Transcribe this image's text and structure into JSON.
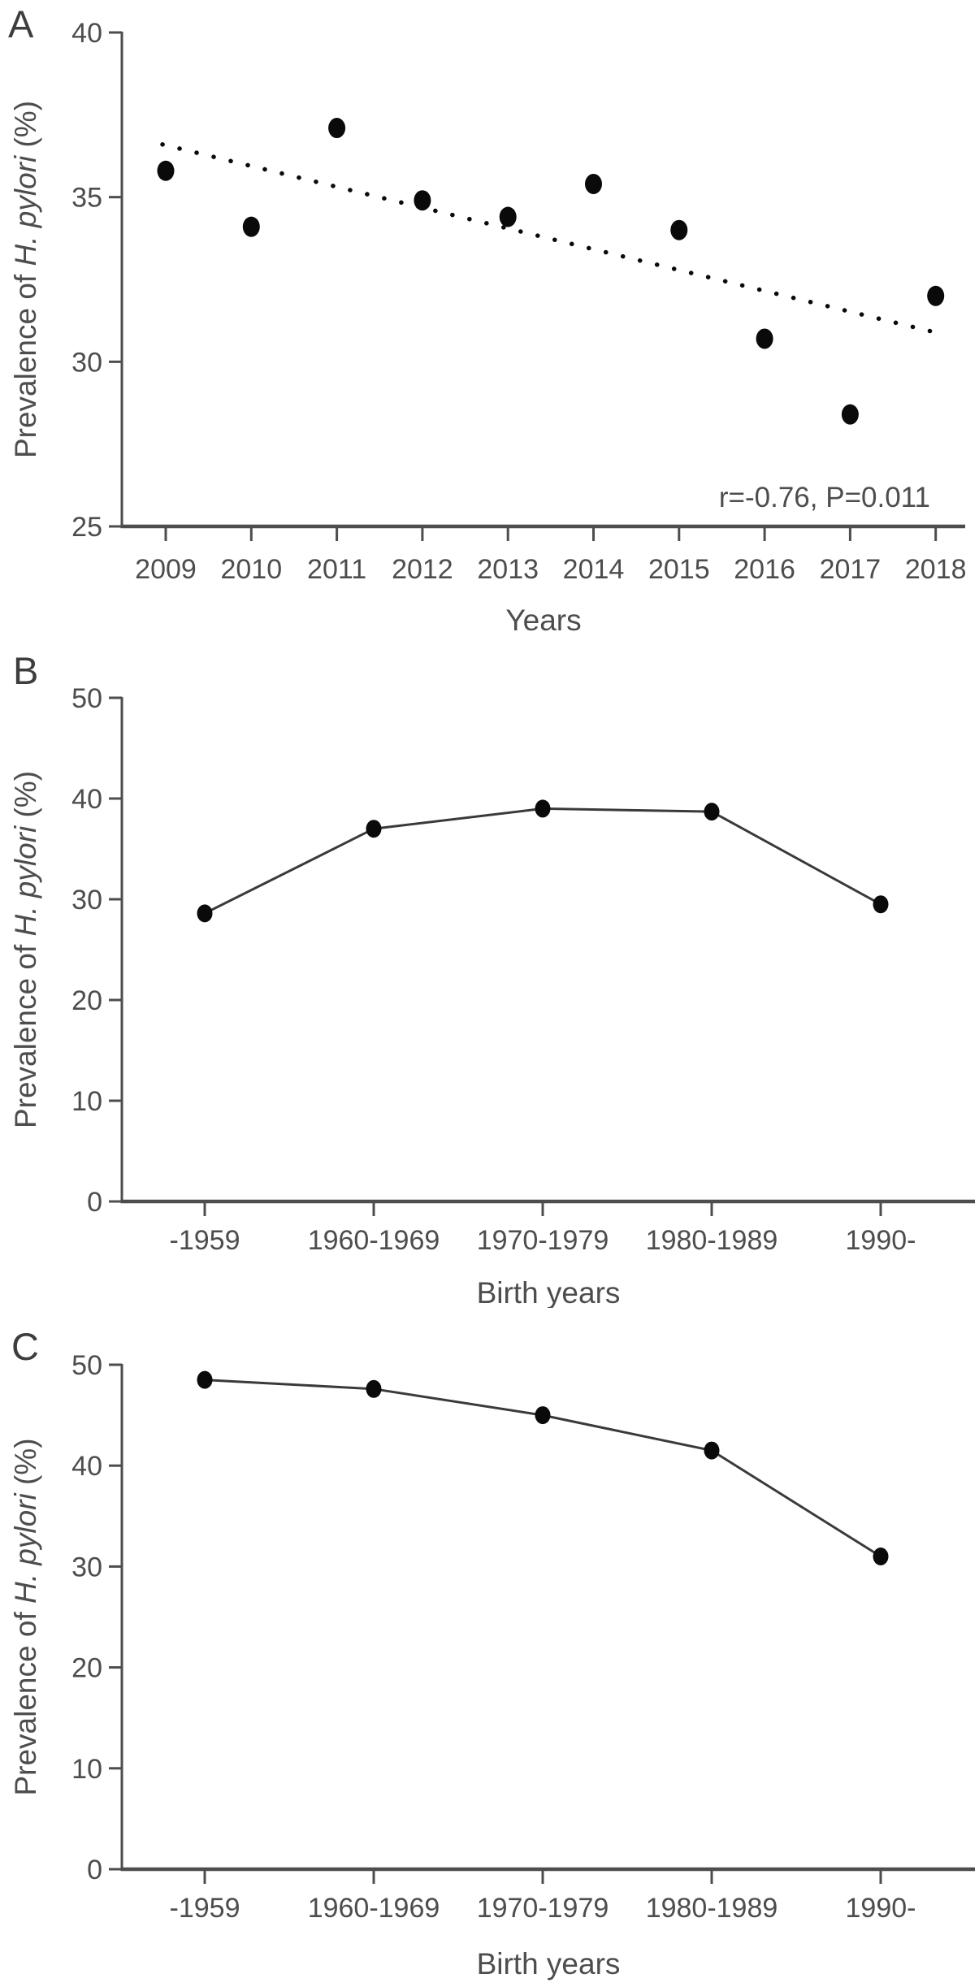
{
  "figure_title": "Prevalence of H. pylori",
  "colors": {
    "background": "#ffffff",
    "axis": "#4d4d4d",
    "text": "#4d4d4d",
    "series_line": "#3a3a3a",
    "point": "#0a0a0a"
  },
  "chart_data": [
    {
      "panel_label": "A",
      "type": "scatter",
      "x": [
        "2009",
        "2010",
        "2011",
        "2012",
        "2013",
        "2014",
        "2015",
        "2016",
        "2017",
        "2018"
      ],
      "values": [
        35.8,
        34.1,
        37.1,
        34.9,
        34.4,
        35.4,
        34.0,
        30.7,
        28.4,
        32.0
      ],
      "xlabel": "Years",
      "ylabel_parts": [
        {
          "text": "Prevalence of ",
          "italic": false
        },
        {
          "text": "H. pylori",
          "italic": true
        },
        {
          "text": " (%)",
          "italic": false
        }
      ],
      "ylim": [
        25,
        40
      ],
      "yticks": [
        40,
        35,
        30,
        25
      ],
      "grid": false,
      "show_line": false,
      "trendline": {
        "style": "dotted",
        "start_value": 36.6,
        "end_value": 30.9
      },
      "annotation": "r=-0.76, P=0.011"
    },
    {
      "panel_label": "B",
      "type": "line",
      "x": [
        "-1959",
        "1960-1969",
        "1970-1979",
        "1980-1989",
        "1990-"
      ],
      "values": [
        28.6,
        37.0,
        39.0,
        38.7,
        29.5
      ],
      "xlabel": "Birth years",
      "ylabel_parts": [
        {
          "text": "Prevalence of ",
          "italic": false
        },
        {
          "text": "H. pylori",
          "italic": true
        },
        {
          "text": " (%)",
          "italic": false
        }
      ],
      "ylim": [
        0,
        50
      ],
      "yticks": [
        50,
        40,
        30,
        20,
        10,
        0
      ],
      "grid": false,
      "show_line": true
    },
    {
      "panel_label": "C",
      "type": "line",
      "x": [
        "-1959",
        "1960-1969",
        "1970-1979",
        "1980-1989",
        "1990-"
      ],
      "values": [
        48.5,
        47.6,
        45.0,
        41.5,
        31.0
      ],
      "xlabel": "Birth years",
      "ylabel_parts": [
        {
          "text": "Prevalence of ",
          "italic": false
        },
        {
          "text": "H. pylori",
          "italic": true
        },
        {
          "text": " (%)",
          "italic": false
        }
      ],
      "ylim": [
        0,
        50
      ],
      "yticks": [
        50,
        40,
        30,
        20,
        10,
        0
      ],
      "grid": false,
      "show_line": true
    }
  ]
}
